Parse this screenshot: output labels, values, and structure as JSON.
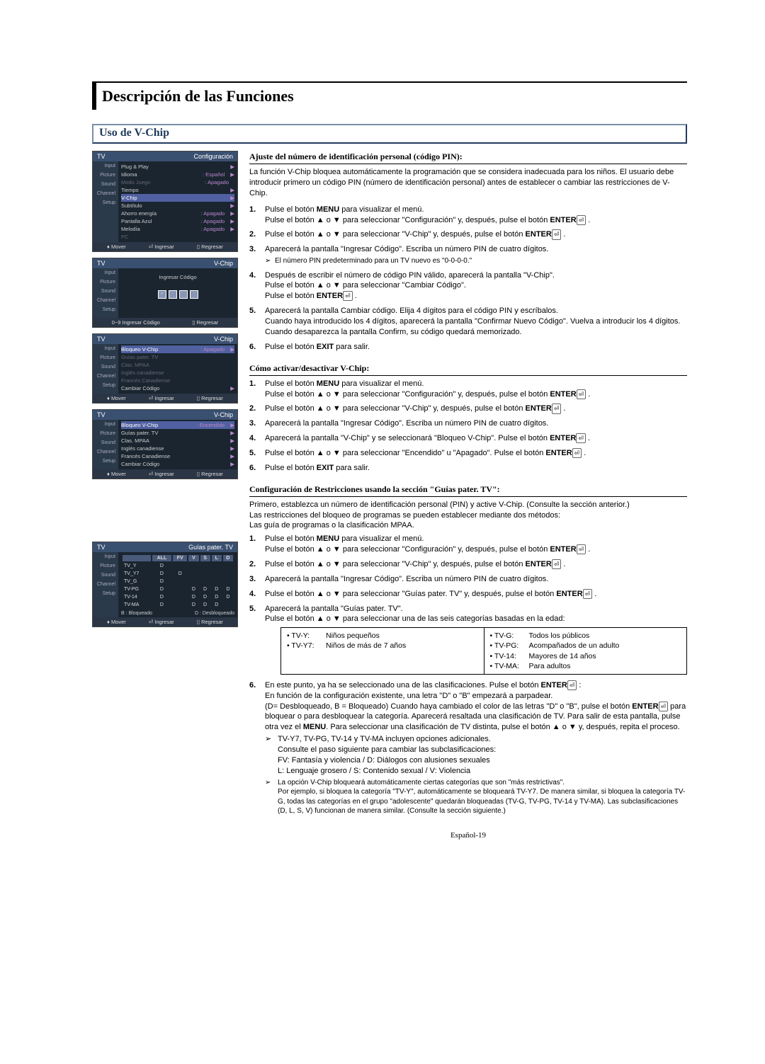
{
  "main_title": "Descripción de las Funciones",
  "section_title": "Uso de V-Chip",
  "tv_label": "TV",
  "sidebar_items": [
    "Input",
    "Picture",
    "Sound",
    "Channel",
    "Setup"
  ],
  "footer_mover": "Mover",
  "footer_ingresar": "Ingresar",
  "footer_regresar": "Regresar",
  "footer_num": "0~9 Ingresar Código",
  "menu1": {
    "header_right": "Configuración",
    "rows": [
      {
        "label": "Plug & Play",
        "val": "",
        "arrow": "▶",
        "cls": ""
      },
      {
        "label": "Idioma",
        "val": ": Español",
        "arrow": "▶",
        "cls": ""
      },
      {
        "label": "Modo Juego",
        "val": ": Apagado",
        "arrow": "",
        "cls": "dim"
      },
      {
        "label": "Tiempo",
        "val": "",
        "arrow": "▶",
        "cls": ""
      },
      {
        "label": "V-Chip",
        "val": "",
        "arrow": "▶",
        "cls": "highlight"
      },
      {
        "label": "Subtítulo",
        "val": "",
        "arrow": "▶",
        "cls": ""
      },
      {
        "label": "Ahorro energía",
        "val": ": Apagado",
        "arrow": "▶",
        "cls": ""
      },
      {
        "label": "Pantalla Azul",
        "val": ": Apagado",
        "arrow": "▶",
        "cls": ""
      },
      {
        "label": "Melodía",
        "val": ": Apagado",
        "arrow": "▶",
        "cls": ""
      },
      {
        "label": "PC",
        "val": "",
        "arrow": "",
        "cls": "dim"
      }
    ]
  },
  "menu2": {
    "header_right": "V-Chip",
    "center_label": "Ingresar Código",
    "pins": [
      "*",
      "",
      "",
      ""
    ]
  },
  "menu3": {
    "header_right": "V-Chip",
    "rows": [
      {
        "label": "Bloqueo V-Chip",
        "val": ": Apagado",
        "arrow": "▶",
        "cls": "highlight"
      },
      {
        "label": "Guías pater. TV",
        "val": "",
        "arrow": "",
        "cls": "dim"
      },
      {
        "label": "Clas. MPAA",
        "val": "",
        "arrow": "",
        "cls": "dim"
      },
      {
        "label": "Inglés canadiense",
        "val": "",
        "arrow": "",
        "cls": "dim"
      },
      {
        "label": "Francés Canadiense",
        "val": "",
        "arrow": "",
        "cls": "dim"
      },
      {
        "label": "Cambiar Código",
        "val": "",
        "arrow": "▶",
        "cls": ""
      }
    ]
  },
  "menu4": {
    "header_right": "V-Chip",
    "rows": [
      {
        "label": "Bloqueo V-Chip",
        "val": ": Encendido",
        "arrow": "▶",
        "cls": "highlight"
      },
      {
        "label": "Guías pater. TV",
        "val": "",
        "arrow": "▶",
        "cls": ""
      },
      {
        "label": "Clas. MPAA",
        "val": "",
        "arrow": "▶",
        "cls": ""
      },
      {
        "label": "Inglés canadiense",
        "val": "",
        "arrow": "▶",
        "cls": ""
      },
      {
        "label": "Francés Canadiense",
        "val": "",
        "arrow": "▶",
        "cls": ""
      },
      {
        "label": "Cambiar Código",
        "val": "",
        "arrow": "▶",
        "cls": ""
      }
    ]
  },
  "menu5": {
    "header_right": "Guías pater. TV",
    "cols": [
      "ALL",
      "FV",
      "V",
      "S",
      "L",
      "D"
    ],
    "rows": [
      {
        "rating": "TV_Y",
        "cells": [
          "D",
          "",
          "",
          "",
          "",
          ""
        ]
      },
      {
        "rating": "TV_Y7",
        "cells": [
          "D",
          "D",
          "",
          "",
          "",
          ""
        ]
      },
      {
        "rating": "TV_G",
        "cells": [
          "D",
          "",
          "",
          "",
          "",
          ""
        ]
      },
      {
        "rating": "TV-PG",
        "cells": [
          "D",
          "",
          "D",
          "D",
          "D",
          "D"
        ]
      },
      {
        "rating": "TV-14",
        "cells": [
          "D",
          "",
          "D",
          "D",
          "D",
          "D"
        ]
      },
      {
        "rating": "TV-MA",
        "cells": [
          "D",
          "",
          "D",
          "D",
          "D",
          ""
        ]
      }
    ],
    "legend_b": "B : Bloqueado",
    "legend_d": "D : Desbloqueado"
  },
  "h1": "Ajuste del número de identificación personal (código PIN):",
  "intro1": "La función V-Chip bloquea automáticamente la programación que se considera inadecuada para los niños. El usuario debe introducir primero un código PIN (número de identificación personal) antes de establecer o cambiar las restricciones de V-Chip.",
  "s1_1a": "Pulse el botón ",
  "s1_1b": " para visualizar el menú.",
  "s1_1c": "Pulse el botón ▲ o ▼ para seleccionar \"Configuración\" y, después, pulse el botón ",
  "s1_2": "Pulse el botón ▲ o ▼ para seleccionar \"V-Chip\" y, después, pulse el botón ",
  "s1_3": "Aparecerá la pantalla \"Ingresar Código\". Escriba un número PIN de cuatro dígitos.",
  "s1_3n": "El número PIN predeterminado para un TV nuevo es \"0-0-0-0.\"",
  "s1_4a": "Después de escribir el número de código PIN válido, aparecerá la pantalla \"V-Chip\".",
  "s1_4b": "Pulse el botón ▲ o ▼ para seleccionar \"Cambiar Código\".",
  "s1_4c": "Pulse el botón ",
  "s1_5a": "Aparecerá la pantalla Cambiar código. Elija 4 dígitos para el código PIN y escríbalos.",
  "s1_5b": "Cuando haya introducido los 4 dígitos, aparecerá la pantalla \"Confirmar Nuevo Código\". Vuelva a introducir los 4 dígitos.",
  "s1_5c": "Cuando desaparezca la pantalla Confirm, su código quedará memorizado.",
  "s1_6a": "Pulse el botón ",
  "s1_6b": " para salir.",
  "h2": "Cómo activar/desactivar V-Chip:",
  "s2_3": "Aparecerá la pantalla \"Ingresar Código\". Escriba un número PIN de cuatro dígitos.",
  "s2_4": "Aparecerá la pantalla \"V-Chip\" y se seleccionará \"Bloqueo V-Chip\". Pulse el botón ",
  "s2_5": "Pulse el botón ▲ o ▼ para seleccionar \"Encendido\" u \"Apagado\". Pulse el botón ",
  "h3": "Configuración de Restricciones usando la sección \"Guías pater. TV\":",
  "intro3a": "Primero, establezca un número de identificación personal (PIN) y active V-Chip. (Consulte la sección anterior.)",
  "intro3b": "Las restricciones del bloqueo de programas se pueden establecer mediante dos métodos:",
  "intro3c": "Las guía de programas o la clasificación MPAA.",
  "s3_4": "Pulse el botón ▲ o ▼ para seleccionar \"Guías pater. TV\" y, después, pulse el botón ",
  "s3_5a": "Aparecerá la pantalla \"Guías pater. TV\".",
  "s3_5b": "Pulse el botón ▲ o ▼ para seleccionar una de las seis categorías basadas en la edad:",
  "age_left": [
    {
      "code": "• TV-Y:",
      "desc": "Niños pequeños"
    },
    {
      "code": "• TV-Y7:",
      "desc": "Niños de más de 7 años"
    }
  ],
  "age_right": [
    {
      "code": "• TV-G:",
      "desc": "Todos los públicos"
    },
    {
      "code": "• TV-PG:",
      "desc": "Acompañados de un adulto"
    },
    {
      "code": "• TV-14:",
      "desc": "Mayores de 14 años"
    },
    {
      "code": "• TV-MA:",
      "desc": "Para adultos"
    }
  ],
  "s3_6a": "En este punto, ya ha se seleccionado una de las clasificaciones. Pulse el botón ",
  "s3_6b": "En función de la configuración existente, una letra \"D\" o \"B\" empezará a parpadear.",
  "s3_6c": "(D= Desbloqueado, B = Bloqueado) Cuando haya cambiado el color de las letras \"D\" o \"B\", pulse el botón ",
  "s3_6d": " para bloquear o para desbloquear la categoría. Aparecerá resaltada una clasificación de TV. Para salir de esta pantalla, pulse otra vez el ",
  "s3_6e": ". Para seleccionar una clasificación de TV distinta, pulse el botón ▲ o ▼ y, después, repita el proceso.",
  "s3_n1a": "TV-Y7, TV-PG, TV-14 y TV-MA incluyen opciones adicionales.",
  "s3_n1b": "Consulte el paso siguiente para cambiar las subclasificaciones:",
  "s3_n1c": "FV: Fantasía y violencia / D: Diálogos con alusiones sexuales",
  "s3_n1d": "L: Lenguaje grosero / S: Contenido sexual / V: Violencia",
  "s3_n2a": "La opción V-Chip bloqueará automáticamente ciertas categorías que son \"más restrictivas\".",
  "s3_n2b": "Por ejemplo, si bloquea la categoría \"TV-Y\", automáticamente se bloqueará TV-Y7. De manera similar, si bloquea la categoría TV-G, todas las categorías en el grupo \"adolescente\" quedarán bloqueadas (TV-G, TV-PG, TV-14 y TV-MA). Las subclasificaciones (D, L, S, V) funcionan de manera similar. (Consulte la sección siguiente.)",
  "kw_menu": "MENU",
  "kw_enter": "ENTER",
  "kw_exit": "EXIT",
  "page_num": "Español-19"
}
